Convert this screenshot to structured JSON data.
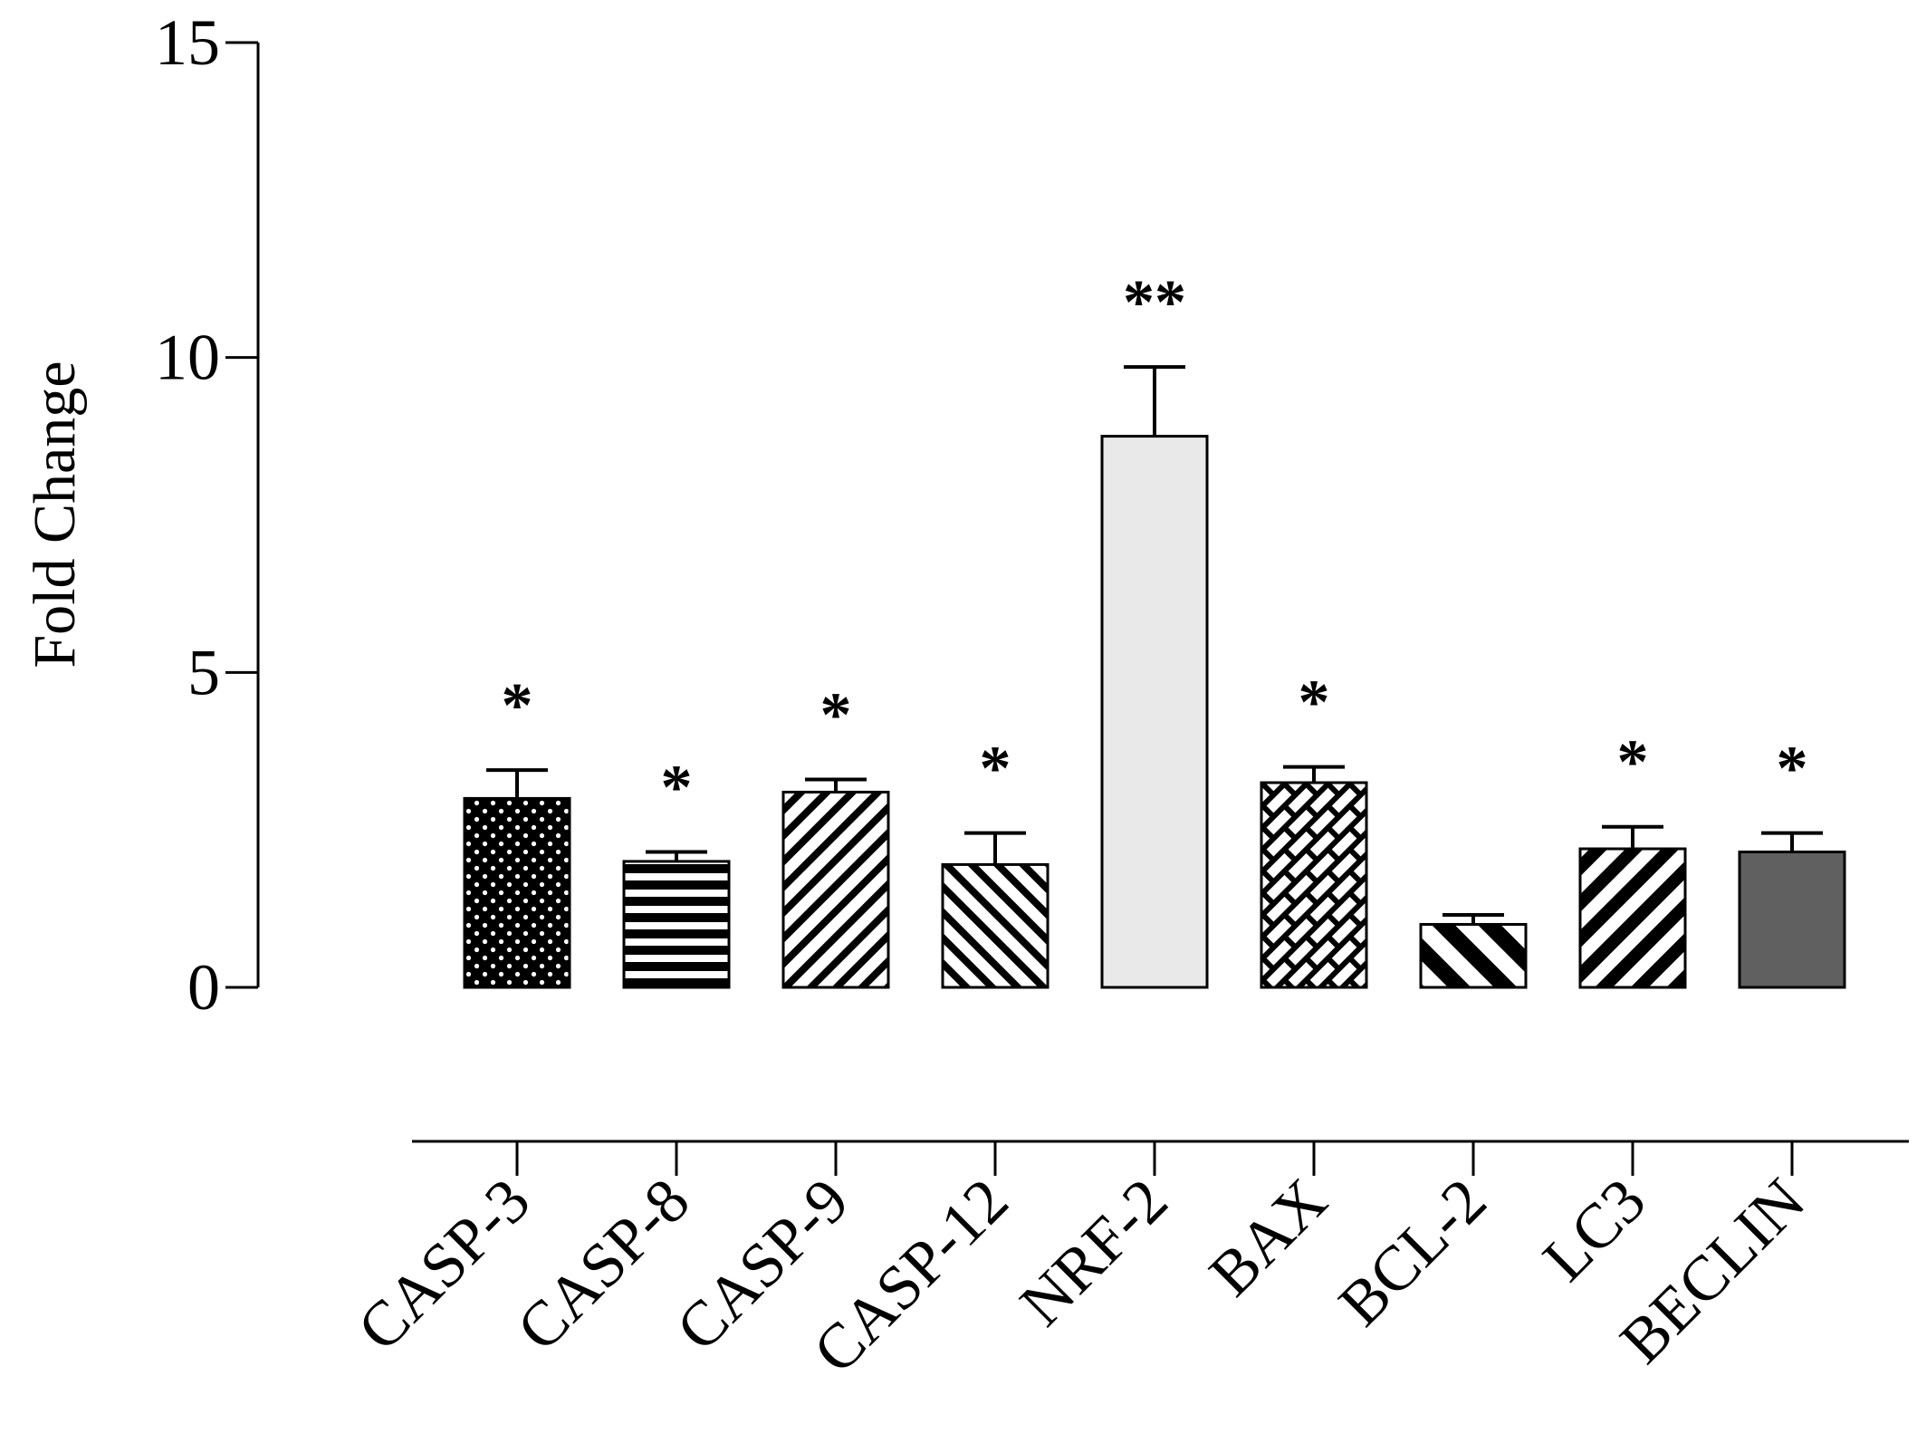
{
  "chart_data": {
    "type": "bar",
    "title": "",
    "xlabel": "",
    "ylabel": "Fold Change",
    "ylim": [
      0,
      15
    ],
    "yticks": [
      0,
      5,
      10,
      15
    ],
    "y_tick_labels": [
      "0",
      "5",
      "10",
      "15"
    ],
    "grid": false,
    "legend": "none",
    "categories": [
      "CASP-3",
      "CASP-8",
      "CASP-9",
      "CASP-12",
      "NRF-2",
      "BAX",
      "BCL-2",
      "LC3",
      "BECLIN"
    ],
    "values": [
      3.0,
      2.0,
      3.1,
      1.95,
      8.75,
      3.25,
      1.0,
      2.2,
      2.15
    ],
    "errors": [
      0.45,
      0.15,
      0.2,
      0.5,
      1.1,
      0.25,
      0.15,
      0.35,
      0.3
    ],
    "significance": [
      "*",
      "*",
      "*",
      "*",
      "**",
      "*",
      "",
      "*",
      "*"
    ],
    "patterns": [
      "dots",
      "hlines",
      "diag-up",
      "diag-down",
      "light-fill",
      "brick",
      "diag-down-wide",
      "diag-up-wide",
      "dark-fill"
    ],
    "colors": {
      "axis": "#000000",
      "light_fill": "#e9e9e9",
      "dark_fill": "#606060",
      "pattern_ink": "#000000",
      "pattern_paper": "#ffffff"
    }
  }
}
